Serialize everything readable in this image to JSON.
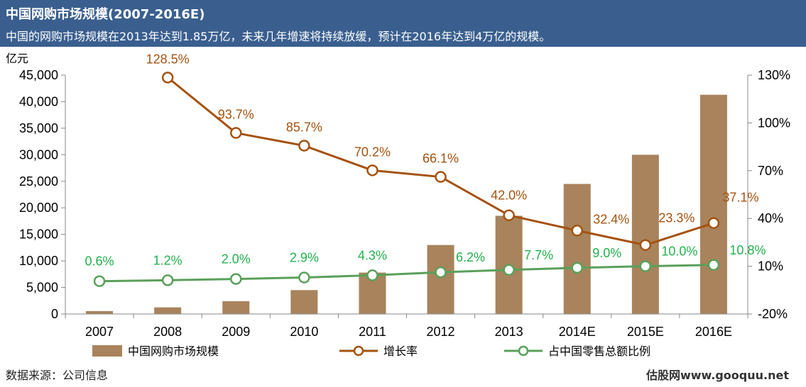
{
  "header": {
    "title": "中国网购市场规模(2007-2016E)",
    "subtitle": "中国的网购市场规模在2013年达到1.85万亿，未来几年增速将持续放缓，预计在2016年达到4万亿的规模。"
  },
  "footer": {
    "source": "数据来源：公司信息",
    "watermark": "估股网www.gooquu.net"
  },
  "colors": {
    "header_bg": "#3a5f8f",
    "bar": "#a8835c",
    "growth_line": "#a5520f",
    "share_line": "#5aa05a",
    "share_label": "#22b14c"
  },
  "chart_data": {
    "type": "bar",
    "left_axis": {
      "unit": "亿元",
      "range": [
        0,
        45000
      ],
      "ticks": [
        "0",
        "5,000",
        "10,000",
        "15,000",
        "20,000",
        "25,000",
        "30,000",
        "35,000",
        "40,000",
        "45,000"
      ]
    },
    "right_axis": {
      "range": [
        -20,
        130
      ],
      "ticks": [
        "-20%",
        "10%",
        "40%",
        "70%",
        "100%",
        "130%"
      ]
    },
    "categories": [
      "2007",
      "2008",
      "2009",
      "2010",
      "2011",
      "2012",
      "2013",
      "2014E",
      "2015E",
      "2016E"
    ],
    "series": [
      {
        "name": "中国网购市场规模",
        "type": "bar",
        "axis": "left",
        "values": [
          550,
          1250,
          2400,
          4500,
          7800,
          13000,
          18500,
          24500,
          30000,
          41300
        ]
      },
      {
        "name": "增长率",
        "type": "line",
        "axis": "right",
        "values": [
          null,
          128.5,
          93.7,
          85.7,
          70.2,
          66.1,
          42.0,
          32.4,
          23.3,
          37.1
        ],
        "labels": [
          "",
          "128.5%",
          "93.7%",
          "85.7%",
          "70.2%",
          "66.1%",
          "42.0%",
          "32.4%",
          "23.3%",
          "37.1%"
        ]
      },
      {
        "name": "占中国零售总额比例",
        "type": "line",
        "axis": "right",
        "values": [
          0.6,
          1.2,
          2.0,
          2.9,
          4.3,
          6.2,
          7.7,
          9.0,
          10.0,
          10.8
        ],
        "labels": [
          "0.6%",
          "1.2%",
          "2.0%",
          "2.9%",
          "4.3%",
          "6.2%",
          "7.7%",
          "9.0%",
          "10.0%",
          "10.8%"
        ]
      }
    ],
    "grid": false,
    "legend": "bottom"
  }
}
